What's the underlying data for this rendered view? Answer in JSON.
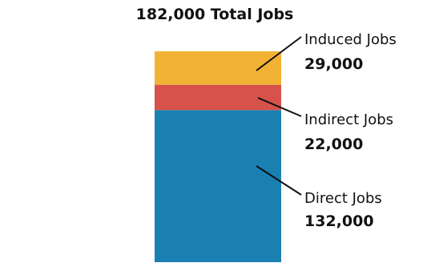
{
  "chart_data": {
    "type": "bar",
    "stacked": true,
    "title": "182,000 Total Jobs",
    "xlabel": "",
    "ylabel": "",
    "categories": [
      ""
    ],
    "ylim": [
      0,
      183000
    ],
    "grid": false,
    "legend": "none",
    "series": [
      {
        "name": "Direct Jobs",
        "label": "132,000",
        "values": [
          132000
        ],
        "color": "#1a80b2"
      },
      {
        "name": "Indirect Jobs",
        "label": "22,000",
        "values": [
          22000
        ],
        "color": "#d6524a"
      },
      {
        "name": "Induced Jobs",
        "label": "29,000",
        "values": [
          29000
        ],
        "color": "#f2b233"
      }
    ]
  }
}
